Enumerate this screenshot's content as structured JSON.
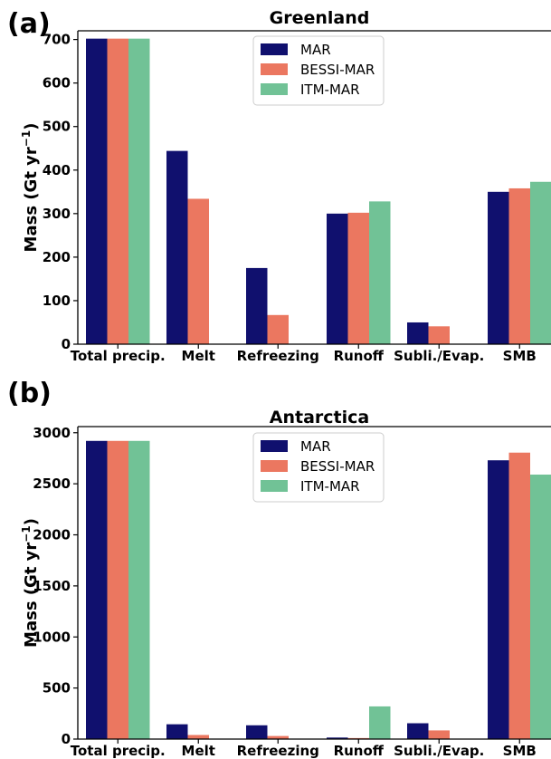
{
  "chart_data": [
    {
      "panel_label": "(a)",
      "type": "bar",
      "title": "Greenland",
      "ylabel": "Mass (Gt yr",
      "ylabel_exp": "−1",
      "ylabel_close": ")",
      "categories": [
        "Total precip.",
        "Melt",
        "Refreezing",
        "Runoff",
        "Subli./Evap.",
        "SMB"
      ],
      "ylim": [
        0,
        720
      ],
      "yticks": [
        0,
        100,
        200,
        300,
        400,
        500,
        600,
        700
      ],
      "legend_loc": "top-center",
      "grid": false,
      "series": [
        {
          "name": "MAR",
          "color": "#10106e",
          "values": [
            702,
            444,
            175,
            300,
            50,
            350
          ]
        },
        {
          "name": "BESSI-MAR",
          "color": "#eb7760",
          "values": [
            702,
            334,
            67,
            302,
            41,
            358
          ]
        },
        {
          "name": "ITM-MAR",
          "color": "#71c296",
          "values": [
            702,
            null,
            null,
            328,
            null,
            373
          ]
        }
      ]
    },
    {
      "panel_label": "(b)",
      "type": "bar",
      "title": "Antarctica",
      "ylabel": "Mass (Gt yr",
      "ylabel_exp": "−1",
      "ylabel_close": ")",
      "categories": [
        "Total precip.",
        "Melt",
        "Refreezing",
        "Runoff",
        "Subli./Evap.",
        "SMB"
      ],
      "ylim": [
        0,
        3060
      ],
      "yticks": [
        0,
        500,
        1000,
        1500,
        2000,
        2500,
        3000
      ],
      "legend_loc": "top-center",
      "grid": false,
      "series": [
        {
          "name": "MAR",
          "color": "#10106e",
          "values": [
            2920,
            145,
            135,
            15,
            155,
            2730
          ]
        },
        {
          "name": "BESSI-MAR",
          "color": "#eb7760",
          "values": [
            2920,
            40,
            30,
            10,
            85,
            2805
          ]
        },
        {
          "name": "ITM-MAR",
          "color": "#71c296",
          "values": [
            2920,
            null,
            null,
            320,
            null,
            2590
          ]
        }
      ]
    }
  ]
}
